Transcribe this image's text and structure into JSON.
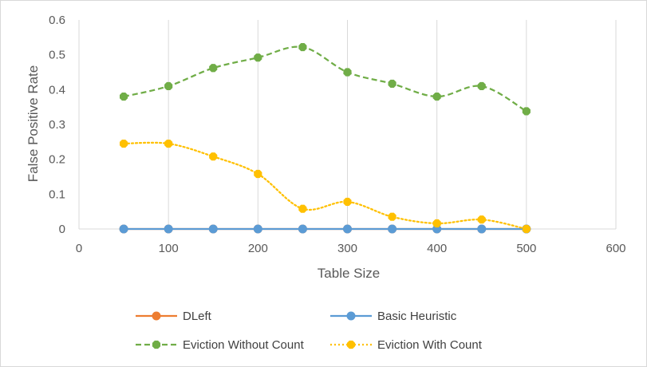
{
  "chart_data": {
    "type": "line",
    "xlabel": "Table Size",
    "ylabel": "False Positive Rate",
    "xlim": [
      0,
      600
    ],
    "ylim": [
      0,
      0.6
    ],
    "x_ticks": [
      0,
      100,
      200,
      300,
      400,
      500,
      600
    ],
    "y_ticks": [
      0,
      0.1,
      0.2,
      0.3,
      0.4,
      0.5,
      0.6
    ],
    "y_tick_labels": [
      "0",
      "0.1",
      "0.2",
      "0.3",
      "0.4",
      "0.5",
      "0.6"
    ],
    "grid": "vertical",
    "legend_position": "bottom",
    "x": [
      50,
      100,
      150,
      200,
      250,
      300,
      350,
      400,
      450,
      500
    ],
    "series": [
      {
        "name": "DLeft",
        "color": "#ED7D31",
        "style": "solid",
        "marker": "circle",
        "values": [
          0,
          0,
          0,
          0,
          0,
          0,
          0,
          0,
          0,
          0
        ]
      },
      {
        "name": "Basic Heuristic",
        "color": "#5B9BD5",
        "style": "solid",
        "marker": "circle",
        "values": [
          0,
          0,
          0,
          0,
          0,
          0,
          0,
          0,
          0,
          0
        ]
      },
      {
        "name": "Eviction Without Count",
        "color": "#70AD47",
        "style": "dashed",
        "marker": "octagon",
        "values": [
          0.38,
          0.41,
          0.462,
          0.492,
          0.522,
          0.45,
          0.417,
          0.38,
          0.41,
          0.338
        ]
      },
      {
        "name": "Eviction With Count",
        "color": "#FFC000",
        "style": "dotted",
        "marker": "octagon",
        "values": [
          0.245,
          0.245,
          0.208,
          0.158,
          0.058,
          0.078,
          0.035,
          0.016,
          0.027,
          0
        ]
      }
    ]
  }
}
